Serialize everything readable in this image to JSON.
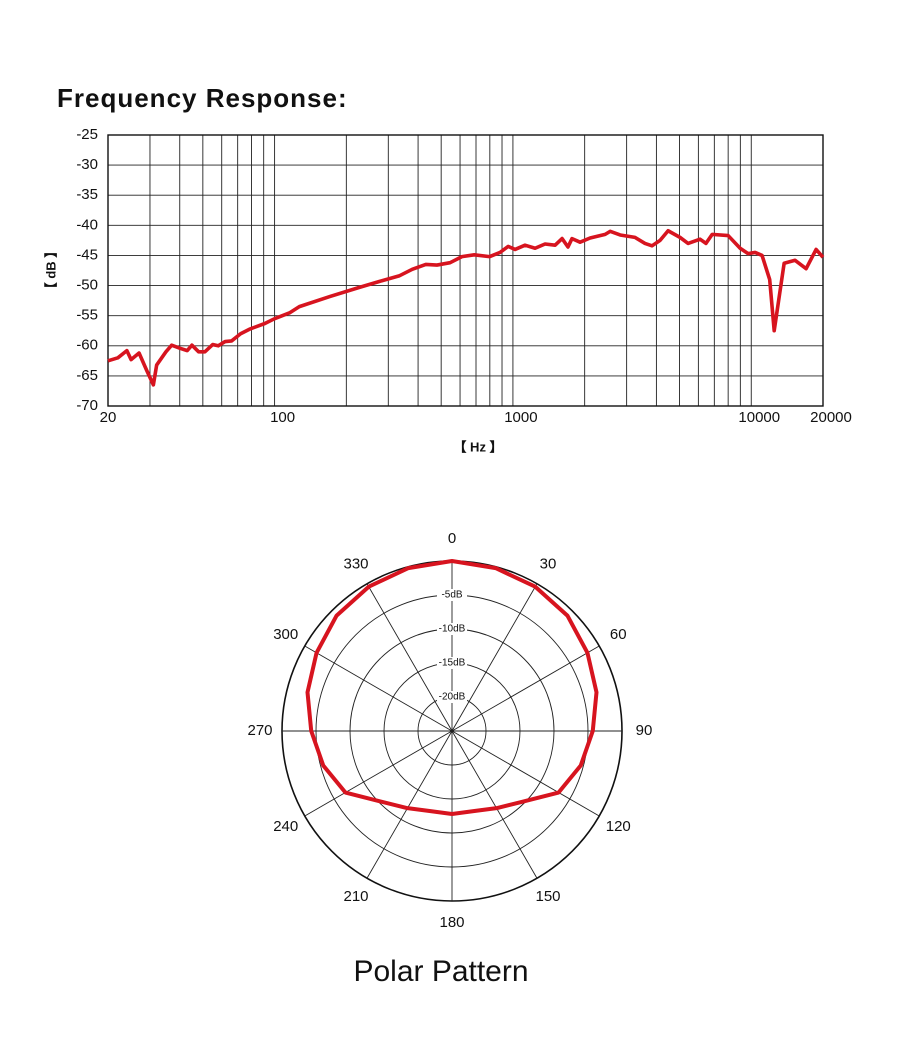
{
  "chart_data": [
    {
      "type": "line",
      "title": "Frequency Response:",
      "x_label": "【 Hz 】",
      "y_label": "【 dB 】",
      "x_scale": "log",
      "xlim": [
        20,
        20000
      ],
      "xticks": [
        20,
        100,
        1000,
        10000,
        20000
      ],
      "xgrid": [
        30,
        40,
        50,
        60,
        70,
        80,
        90,
        200,
        300,
        400,
        500,
        600,
        700,
        800,
        900,
        2000,
        3000,
        4000,
        5000,
        6000,
        7000,
        8000,
        9000
      ],
      "ylim": [
        -70,
        -25
      ],
      "yticks": [
        -70,
        -65,
        -60,
        -55,
        -50,
        -45,
        -40,
        -35,
        -30,
        -25
      ],
      "grid": true,
      "series": [
        {
          "color": "#d7141f",
          "x": [
            20,
            22,
            24,
            25,
            27,
            29,
            31,
            32,
            35,
            37,
            40,
            43,
            45,
            48,
            51,
            55,
            58,
            62,
            66,
            72,
            79,
            91,
            100,
            116,
            127,
            171,
            227,
            276,
            333,
            378,
            431,
            480,
            545,
            611,
            688,
            797,
            883,
            955,
            1021,
            1124,
            1239,
            1364,
            1503,
            1608,
            1702,
            1770,
            1913,
            2108,
            2438,
            2558,
            2818,
            3252,
            3582,
            3835,
            4144,
            4478,
            5024,
            5432,
            6096,
            6456,
            6856,
            7998,
            8980,
            9700,
            10380,
            11100,
            11950,
            12480,
            13740,
            15270,
            16990,
            18710,
            20000
          ],
          "values": [
            -62.5,
            -62,
            -60.8,
            -62.3,
            -61.2,
            -64,
            -66.5,
            -63.2,
            -61,
            -59.9,
            -60.4,
            -60.8,
            -59.9,
            -61,
            -61,
            -59.8,
            -60,
            -59.3,
            -59.2,
            -58,
            -57.2,
            -56.3,
            -55.5,
            -54.5,
            -53.5,
            -51.8,
            -50.3,
            -49.3,
            -48.4,
            -47.3,
            -46.5,
            -46.6,
            -46.2,
            -45.2,
            -44.9,
            -45.2,
            -44.5,
            -43.5,
            -44,
            -43.3,
            -43.8,
            -43.1,
            -43.3,
            -42.2,
            -43.6,
            -42.2,
            -42.8,
            -42.1,
            -41.5,
            -41,
            -41.6,
            -42,
            -43,
            -43.4,
            -42.5,
            -40.9,
            -42,
            -43,
            -42.3,
            -43,
            -41.5,
            -41.7,
            -43.8,
            -44.7,
            -44.5,
            -45,
            -49,
            -57.5,
            -46.3,
            -45.8,
            -47.2,
            -44,
            -45.3
          ]
        }
      ]
    },
    {
      "type": "polar",
      "title": "Polar Pattern",
      "theta_ticks": [
        0,
        30,
        60,
        90,
        120,
        150,
        180,
        210,
        240,
        270,
        300,
        330
      ],
      "rlim": [
        -25,
        0
      ],
      "rticks": [
        {
          "value": -5,
          "label": "-5dB"
        },
        {
          "value": -10,
          "label": "-10dB"
        },
        {
          "value": -15,
          "label": "-15dB"
        },
        {
          "value": -20,
          "label": "-20dB"
        }
      ],
      "series": [
        {
          "color": "#d7141f",
          "theta": [
            0,
            15,
            30,
            45,
            60,
            75,
            90,
            105,
            120,
            135,
            150,
            165,
            180,
            195,
            210,
            225,
            240,
            255,
            270,
            285,
            300,
            315,
            330,
            345
          ],
          "values": [
            0,
            -0.2,
            -0.5,
            -1,
            -2,
            -3,
            -4.3,
            -5.4,
            -6.9,
            -10.3,
            -11.9,
            -12.8,
            -12.8,
            -12.8,
            -11.9,
            -10.3,
            -6.9,
            -5.4,
            -4.3,
            -3,
            -2,
            -1,
            -0.5,
            -0.2
          ]
        }
      ]
    }
  ]
}
